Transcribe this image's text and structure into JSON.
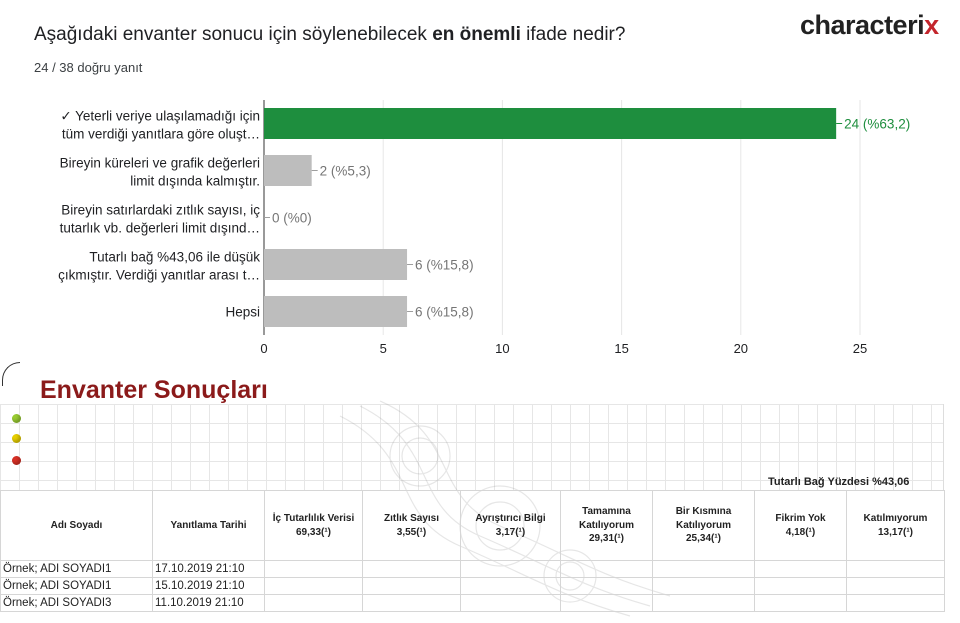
{
  "question": {
    "prefix": "Aşağıdaki envanter sonucu için söylenebilecek ",
    "bold": "en önemli",
    "suffix": " ifade nedir?"
  },
  "subtitle": "24 / 38 doğru yanıt",
  "logo": {
    "text": "characteri",
    "accent": "x",
    "accent_color": "#c3252c"
  },
  "chart_data": {
    "type": "bar",
    "orientation": "horizontal",
    "categories": [
      [
        "✓ Yeterli veriye ulaşılamadığı için",
        "tüm verdiği yanıtlara göre oluşt…"
      ],
      [
        "Bireyin küreleri ve grafik değerleri",
        "limit dışında kalmıştır."
      ],
      [
        "Bireyin satırlardaki zıtlık sayısı, iç",
        "tutarlık vb. değerleri limit dışınd…"
      ],
      [
        "Tutarlı bağ %43,06 ile düşük",
        "çıkmıştır. Verdiği yanıtlar arası t…"
      ],
      [
        "Hepsi"
      ]
    ],
    "values": [
      24,
      2,
      0,
      6,
      6
    ],
    "data_labels": [
      "24 (%63,2)",
      "2 (%5,3)",
      "0 (%0)",
      "6 (%15,8)",
      "6 (%15,8)"
    ],
    "correct_index": 0,
    "colors": {
      "correct": "#1e8e3e",
      "other": "#bdbdbd",
      "correct_label": "#1e8e3e",
      "other_label": "#757575"
    },
    "xlim": [
      0,
      25
    ],
    "xticks": [
      "0",
      "5",
      "10",
      "15",
      "20",
      "25"
    ],
    "grid": true
  },
  "results": {
    "title": "Envanter Sonuçları",
    "dot_colors": [
      "#9acd32",
      "#e8d000",
      "#d93025"
    ],
    "tutarli_bag": "Tutarlı Bağ Yüzdesi %43,06",
    "headers": [
      {
        "line1": "Adı Soyadı",
        "line2": ""
      },
      {
        "line1": "Yanıtlama Tarihi",
        "line2": ""
      },
      {
        "line1": "İç Tutarlılık Verisi",
        "line2": "69,33(¹)"
      },
      {
        "line1": "Zıtlık Sayısı",
        "line2": "3,55(¹)"
      },
      {
        "line1": "Ayrıştırıcı Bilgi",
        "line2": "3,17(¹)"
      },
      {
        "line1": "Tamamına Katılıyorum",
        "line2": "29,31(¹)"
      },
      {
        "line1": "Bir Kısmına Katılıyorum",
        "line2": "25,34(¹)"
      },
      {
        "line1": "Fikrim Yok",
        "line2": "4,18(¹)"
      },
      {
        "line1": "Katılmıyorum",
        "line2": "13,17(¹)"
      }
    ],
    "rows": [
      {
        "name": "Örnek; ADI SOYADI1",
        "date": "17.10.2019 21:10"
      },
      {
        "name": "Örnek; ADI SOYADI1",
        "date": "15.10.2019 21:10"
      },
      {
        "name": "Örnek; ADI SOYADI3",
        "date": "11.10.2019 21:10"
      }
    ]
  }
}
